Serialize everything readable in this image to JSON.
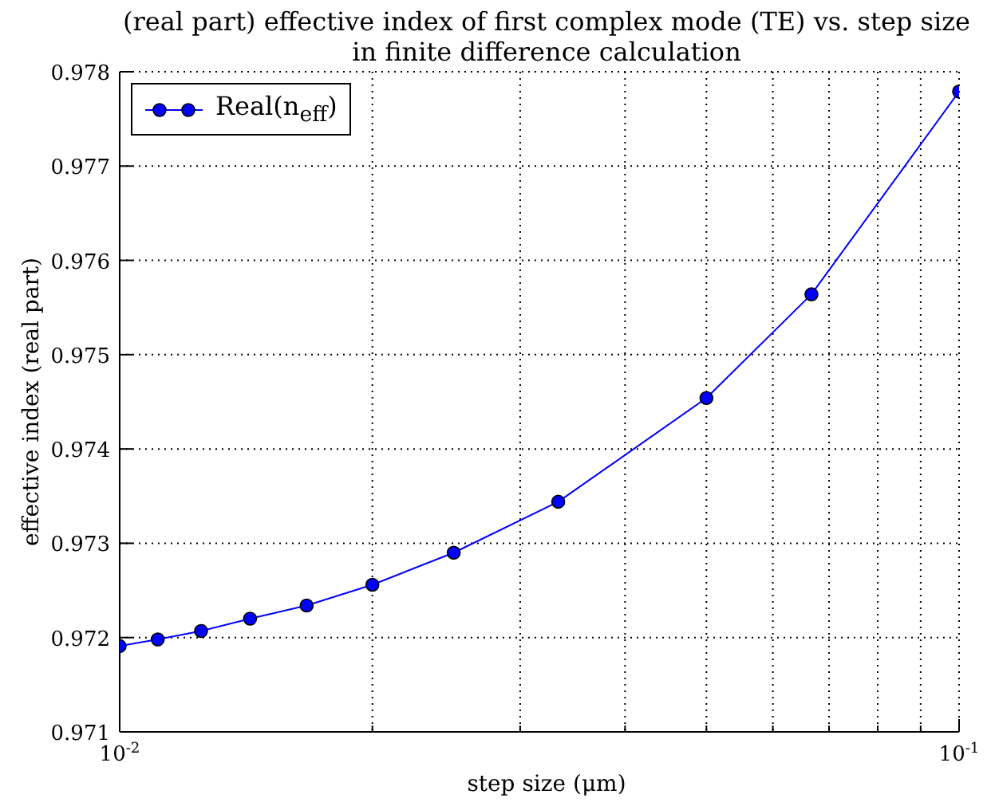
{
  "chart_data": {
    "type": "line",
    "title": "(real part) effective index of first complex mode (TE) vs. step size in finite difference calculation",
    "xlabel": "step size (μm)",
    "ylabel": "effective index (real part)",
    "x": [
      0.01,
      0.0111,
      0.0125,
      0.0143,
      0.0167,
      0.02,
      0.025,
      0.0333,
      0.05,
      0.0667,
      0.1
    ],
    "series": [
      {
        "name": "Real(n$_{eff}$)",
        "color": "#0000ff",
        "values": [
          0.97191,
          0.97198,
          0.97207,
          0.9722,
          0.97234,
          0.97256,
          0.9729,
          0.97344,
          0.97454,
          0.97564,
          0.97779
        ]
      }
    ],
    "log": "x",
    "xlim": [
      0.01,
      0.1
    ],
    "xticks": [
      {
        "value": 0.01,
        "label": "10$^{-2}$"
      },
      {
        "value": 0.02,
        "label": null
      },
      {
        "value": 0.03,
        "label": null
      },
      {
        "value": 0.04,
        "label": null
      },
      {
        "value": 0.05,
        "label": null
      },
      {
        "value": 0.06,
        "label": null
      },
      {
        "value": 0.07,
        "label": null
      },
      {
        "value": 0.08,
        "label": null
      },
      {
        "value": 0.09,
        "label": null
      },
      {
        "value": 0.1,
        "label": "10$^{-1}$"
      }
    ],
    "ylim": [
      0.971,
      0.978
    ],
    "yticks": [
      0.971,
      0.972,
      0.973,
      0.974,
      0.975,
      0.976,
      0.977,
      0.978
    ],
    "grid": true,
    "legend": "top left",
    "marker": "circle",
    "line_style": "solid"
  }
}
